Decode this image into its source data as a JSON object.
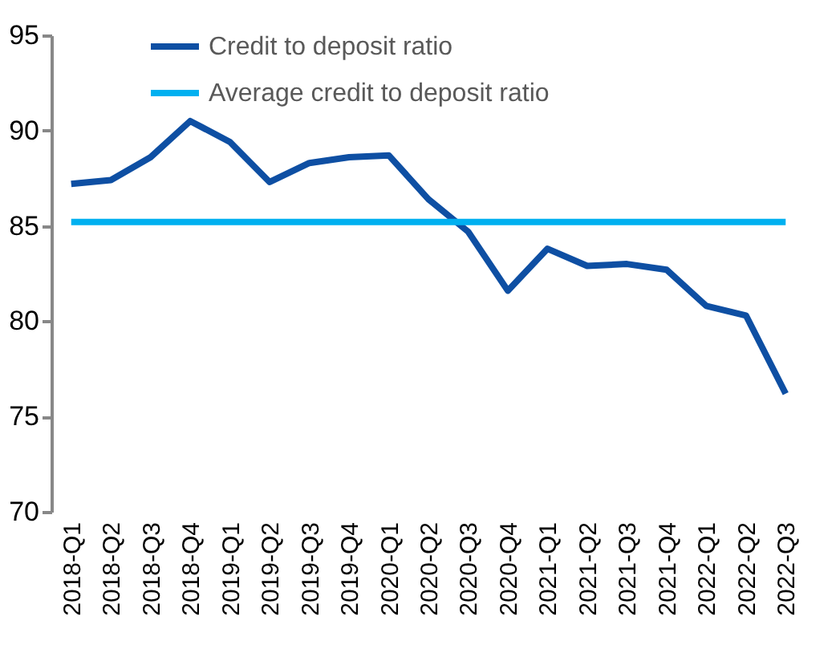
{
  "chart_data": {
    "type": "line",
    "categories": [
      "2018-Q1",
      "2018-Q2",
      "2018-Q3",
      "2018-Q4",
      "2019-Q1",
      "2019-Q2",
      "2019-Q3",
      "2019-Q4",
      "2020-Q1",
      "2020-Q2",
      "2020-Q3",
      "2020-Q4",
      "2021-Q1",
      "2021-Q2",
      "2021-Q3",
      "2021-Q4",
      "2022-Q1",
      "2022-Q2",
      "2022-Q3"
    ],
    "series": [
      {
        "name": "Credit to deposit ratio",
        "color": "#0e4fa3",
        "values": [
          87.2,
          87.4,
          88.6,
          90.5,
          89.4,
          87.3,
          88.3,
          88.6,
          88.7,
          86.4,
          84.7,
          81.6,
          83.8,
          82.9,
          83.0,
          82.7,
          80.8,
          80.3,
          76.2
        ]
      },
      {
        "name": "Average credit to deposit ratio",
        "color": "#00b0f0",
        "values": [
          85.2,
          85.2,
          85.2,
          85.2,
          85.2,
          85.2,
          85.2,
          85.2,
          85.2,
          85.2,
          85.2,
          85.2,
          85.2,
          85.2,
          85.2,
          85.2,
          85.2,
          85.2,
          85.2
        ]
      }
    ],
    "ylim": [
      70,
      95
    ],
    "yticks": [
      70,
      75,
      80,
      85,
      90,
      95
    ],
    "grid": false,
    "legend": "top",
    "marker": "none",
    "line_style": "solid"
  }
}
